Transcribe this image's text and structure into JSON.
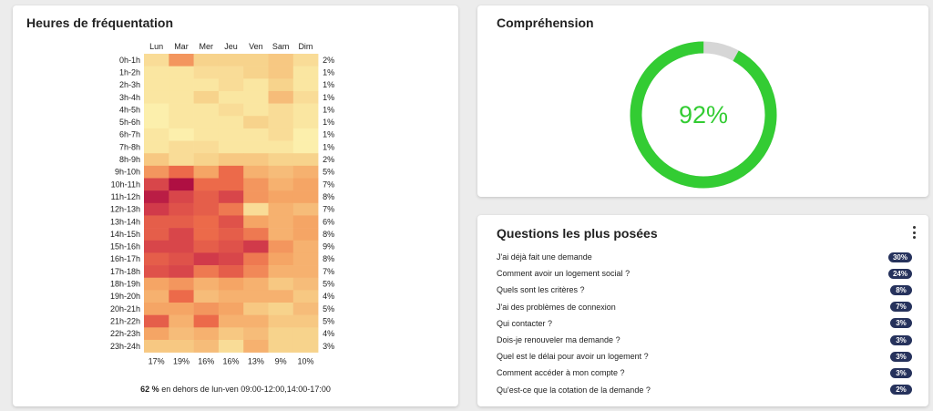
{
  "heatmap": {
    "title": "Heures de fréquentation",
    "days": [
      "Lun",
      "Mar",
      "Mer",
      "Jeu",
      "Ven",
      "Sam",
      "Dim"
    ],
    "hours": [
      "0h-1h",
      "1h-2h",
      "2h-3h",
      "3h-4h",
      "4h-5h",
      "5h-6h",
      "6h-7h",
      "7h-8h",
      "8h-9h",
      "9h-10h",
      "10h-11h",
      "11h-12h",
      "12h-13h",
      "13h-14h",
      "14h-15h",
      "15h-16h",
      "16h-17h",
      "17h-18h",
      "18h-19h",
      "19h-20h",
      "20h-21h",
      "21h-22h",
      "22h-23h",
      "23h-24h"
    ],
    "row_totals": [
      "2%",
      "1%",
      "1%",
      "1%",
      "1%",
      "1%",
      "1%",
      "1%",
      "2%",
      "5%",
      "7%",
      "8%",
      "7%",
      "6%",
      "8%",
      "9%",
      "8%",
      "7%",
      "5%",
      "4%",
      "5%",
      "5%",
      "4%",
      "3%"
    ],
    "col_totals": [
      "17%",
      "19%",
      "16%",
      "16%",
      "13%",
      "9%",
      "10%"
    ],
    "footnote_value": "62 %",
    "footnote_text": "en dehors de lun-ven 09:00-12:00,14:00-17:00",
    "color_scale": [
      "#fdf8b6",
      "#f7d38c",
      "#f5a565",
      "#ec6a4a",
      "#d13a4a",
      "#a3003f"
    ]
  },
  "chart_data": {
    "type": "heatmap",
    "title": "Heures de fréquentation",
    "x": [
      "Lun",
      "Mar",
      "Mer",
      "Jeu",
      "Ven",
      "Sam",
      "Dim"
    ],
    "y": [
      "0h-1h",
      "1h-2h",
      "2h-3h",
      "3h-4h",
      "4h-5h",
      "5h-6h",
      "6h-7h",
      "7h-8h",
      "8h-9h",
      "9h-10h",
      "10h-11h",
      "11h-12h",
      "12h-13h",
      "13h-14h",
      "14h-15h",
      "15h-16h",
      "16h-17h",
      "17h-18h",
      "18h-19h",
      "19h-20h",
      "20h-21h",
      "21h-22h",
      "22h-23h",
      "23h-24h"
    ],
    "values": [
      [
        0.15,
        0.45,
        0.2,
        0.2,
        0.2,
        0.25,
        0.15
      ],
      [
        0.1,
        0.1,
        0.15,
        0.15,
        0.2,
        0.25,
        0.1
      ],
      [
        0.1,
        0.1,
        0.1,
        0.15,
        0.1,
        0.2,
        0.1
      ],
      [
        0.1,
        0.1,
        0.2,
        0.1,
        0.1,
        0.3,
        0.15
      ],
      [
        0.05,
        0.1,
        0.1,
        0.15,
        0.1,
        0.15,
        0.1
      ],
      [
        0.05,
        0.1,
        0.1,
        0.1,
        0.2,
        0.15,
        0.1
      ],
      [
        0.1,
        0.05,
        0.1,
        0.1,
        0.1,
        0.15,
        0.05
      ],
      [
        0.1,
        0.15,
        0.15,
        0.1,
        0.1,
        0.1,
        0.05
      ],
      [
        0.25,
        0.15,
        0.2,
        0.25,
        0.25,
        0.2,
        0.2
      ],
      [
        0.45,
        0.6,
        0.4,
        0.6,
        0.35,
        0.3,
        0.35
      ],
      [
        0.75,
        0.95,
        0.6,
        0.6,
        0.45,
        0.35,
        0.4
      ],
      [
        0.9,
        0.75,
        0.65,
        0.75,
        0.45,
        0.4,
        0.4
      ],
      [
        0.8,
        0.7,
        0.65,
        0.55,
        0.15,
        0.35,
        0.3
      ],
      [
        0.65,
        0.65,
        0.6,
        0.7,
        0.4,
        0.35,
        0.4
      ],
      [
        0.65,
        0.75,
        0.6,
        0.65,
        0.55,
        0.35,
        0.4
      ],
      [
        0.75,
        0.75,
        0.65,
        0.7,
        0.8,
        0.45,
        0.35
      ],
      [
        0.65,
        0.7,
        0.8,
        0.75,
        0.55,
        0.4,
        0.35
      ],
      [
        0.7,
        0.75,
        0.55,
        0.65,
        0.5,
        0.35,
        0.35
      ],
      [
        0.4,
        0.45,
        0.35,
        0.4,
        0.35,
        0.25,
        0.3
      ],
      [
        0.35,
        0.6,
        0.3,
        0.35,
        0.35,
        0.35,
        0.25
      ],
      [
        0.4,
        0.4,
        0.45,
        0.4,
        0.25,
        0.2,
        0.3
      ],
      [
        0.65,
        0.35,
        0.6,
        0.35,
        0.35,
        0.25,
        0.25
      ],
      [
        0.4,
        0.3,
        0.35,
        0.25,
        0.3,
        0.2,
        0.2
      ],
      [
        0.25,
        0.25,
        0.3,
        0.15,
        0.35,
        0.2,
        0.2
      ]
    ]
  },
  "comprehension": {
    "title": "Compréhension",
    "value_label": "92%",
    "value": 0.92,
    "ring_color": "#33cc33",
    "track_color": "#d6d6d6"
  },
  "questions": {
    "title": "Questions les plus posées",
    "menu_icon": "kebab-menu-icon",
    "items": [
      {
        "label": "J'ai déjà fait une demande",
        "pct": "30%"
      },
      {
        "label": "Comment avoir un logement social ?",
        "pct": "24%"
      },
      {
        "label": "Quels sont les critères ?",
        "pct": "8%"
      },
      {
        "label": "J'ai des problèmes de connexion",
        "pct": "7%"
      },
      {
        "label": "Qui contacter ?",
        "pct": "3%"
      },
      {
        "label": "Dois-je renouveler ma demande ?",
        "pct": "3%"
      },
      {
        "label": "Quel est le délai pour avoir un logement ?",
        "pct": "3%"
      },
      {
        "label": "Comment accéder à mon compte ?",
        "pct": "3%"
      },
      {
        "label": "Qu'est-ce que la cotation de la demande ?",
        "pct": "2%"
      }
    ],
    "badge_color": "#26325c"
  }
}
